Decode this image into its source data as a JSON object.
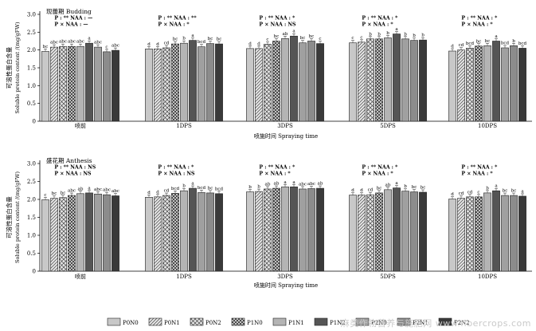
{
  "chart_data": [
    {
      "type": "bar",
      "title": "现蕾期 Budding",
      "ylabel_cn": "可溶性蛋白含量",
      "ylabel_en": "Soluble protein content /(mg/gFW)",
      "xlabel": "喷施时间 Spraying time",
      "ylim": [
        0,
        3.0
      ],
      "yticks": [
        "0",
        "0.5",
        "1.0",
        "1.5",
        "2.0",
        "2.5",
        "3.0"
      ],
      "categories": [
        "喷前",
        "1DPS",
        "3DPS",
        "5DPS",
        "10DPS"
      ],
      "stats": [
        [
          "P : ** NAA : —",
          "P × NAA : —"
        ],
        [
          "P : ** NAA : **",
          "P × NAA : *"
        ],
        [
          "P : ** NAA : *",
          "P × NAA : NS"
        ],
        [
          "P : ** NAA : *",
          "P × NAA : *"
        ],
        [
          "P : ** NAA : *",
          "P × NAA : *"
        ]
      ],
      "series": [
        {
          "name": "P0N0",
          "values": [
            1.96,
            2.03,
            2.04,
            2.2,
            1.97
          ],
          "letters": [
            "bc",
            "d",
            "d",
            "c",
            "d"
          ]
        },
        {
          "name": "P0N1",
          "values": [
            2.08,
            2.03,
            2.04,
            2.22,
            2.0
          ],
          "letters": [
            "abc",
            "d",
            "d",
            "c",
            "cd"
          ]
        },
        {
          "name": "P0N2",
          "values": [
            2.1,
            2.06,
            2.16,
            2.31,
            2.05
          ],
          "letters": [
            "abc",
            "cd",
            "c",
            "b",
            "bcd"
          ]
        },
        {
          "name": "P1N0",
          "values": [
            2.1,
            2.17,
            2.25,
            2.31,
            2.11
          ],
          "letters": [
            "abc",
            "bc",
            "bc",
            "b",
            "bc"
          ]
        },
        {
          "name": "P1N1",
          "values": [
            2.1,
            2.19,
            2.32,
            2.34,
            2.12
          ],
          "letters": [
            "abc",
            "b",
            "ab",
            "b",
            "bc"
          ]
        },
        {
          "name": "P1N2",
          "values": [
            2.19,
            2.27,
            2.39,
            2.45,
            2.25
          ],
          "letters": [
            "a",
            "a",
            "a",
            "a",
            "a"
          ]
        },
        {
          "name": "P2N0",
          "values": [
            2.08,
            2.09,
            2.2,
            2.31,
            2.06
          ],
          "letters": [
            "abc",
            "bcd",
            "bc",
            "b",
            "bcd"
          ]
        },
        {
          "name": "P2N1",
          "values": [
            1.95,
            2.18,
            2.25,
            2.27,
            2.12
          ],
          "letters": [
            "c",
            "bc",
            "bc",
            "b",
            "b"
          ]
        },
        {
          "name": "P2N2",
          "values": [
            1.99,
            2.17,
            2.18,
            2.28,
            2.05
          ],
          "letters": [
            "abc",
            "bc",
            "c",
            "b",
            "bcd"
          ]
        }
      ]
    },
    {
      "type": "bar",
      "title": "盛花期 Anthesis",
      "ylabel_cn": "可溶性蛋白含量",
      "ylabel_en": "Soluble protein content /(mg/gFW)",
      "xlabel": "喷施时间 Spraying time",
      "ylim": [
        0,
        3.0
      ],
      "yticks": [
        "0",
        "0.5",
        "1.0",
        "1.5",
        "2.0",
        "2.5",
        "3.0"
      ],
      "categories": [
        "喷前",
        "1DPS",
        "3DPS",
        "5DPS",
        "10DPS"
      ],
      "stats": [
        [
          "P : ** NAA : NS",
          "P × NAA : NS"
        ],
        [
          "P : ** NAA : *",
          "P × NAA : NS"
        ],
        [
          "P : ** NAA : *",
          "P × NAA : *"
        ],
        [
          "P : ** NAA : *",
          "P × NAA : *"
        ],
        [
          "P : ** NAA : *",
          "P × NAA : *"
        ]
      ],
      "series": [
        {
          "name": "P0N0",
          "values": [
            1.99,
            2.06,
            2.21,
            2.12,
            2.01
          ],
          "letters": [
            "c",
            "d",
            "b",
            "d",
            "d"
          ]
        },
        {
          "name": "P0N1",
          "values": [
            2.03,
            2.07,
            2.22,
            2.12,
            2.03
          ],
          "letters": [
            "bc",
            "d",
            "b",
            "d",
            "cd"
          ]
        },
        {
          "name": "P0N2",
          "values": [
            2.05,
            2.11,
            2.29,
            2.13,
            2.07
          ],
          "letters": [
            "bc",
            "cd",
            "ab",
            "cd",
            "cd"
          ]
        },
        {
          "name": "P1N0",
          "values": [
            2.11,
            2.17,
            2.31,
            2.18,
            2.07
          ],
          "letters": [
            "abc",
            "bcd",
            "ab",
            "bc",
            "c"
          ]
        },
        {
          "name": "P1N1",
          "values": [
            2.16,
            2.24,
            2.35,
            2.27,
            2.18
          ],
          "letters": [
            "ab",
            "b",
            "a",
            "ab",
            "b"
          ]
        },
        {
          "name": "P1N2",
          "values": [
            2.18,
            2.31,
            2.35,
            2.32,
            2.24
          ],
          "letters": [
            "a",
            "a",
            "a",
            "a",
            "a"
          ]
        },
        {
          "name": "P2N0",
          "values": [
            2.15,
            2.19,
            2.29,
            2.23,
            2.11
          ],
          "letters": [
            "abc",
            "bcd",
            "abc",
            "b",
            "bc"
          ]
        },
        {
          "name": "P2N1",
          "values": [
            2.13,
            2.18,
            2.3,
            2.21,
            2.11
          ],
          "letters": [
            "abc",
            "bc",
            "abc",
            "bc",
            "bc"
          ]
        },
        {
          "name": "P2N2",
          "values": [
            2.1,
            2.16,
            2.31,
            2.2,
            2.09
          ],
          "letters": [
            "abc",
            "bcd",
            "ab",
            "bc",
            "a"
          ]
        }
      ]
    }
  ],
  "legend": [
    "P0N0",
    "P0N1",
    "P0N2",
    "P1N0",
    "P1N1",
    "P1N2",
    "P2N0",
    "P2N1",
    "P2N2"
  ],
  "series_colors": [
    "#c8c8c8",
    "#e6e6e6",
    "#e6e6e6",
    "#e6e6e6",
    "#b4b4b4",
    "#555555",
    "#a0a0a0",
    "#8c8c8c",
    "#3a3a3a"
  ],
  "series_patterns": [
    "none",
    "diag",
    "cross",
    "xhatch",
    "none",
    "none",
    "none",
    "none",
    "none"
  ],
  "watermark": "麻类作物营养与施肥网 www.fibercrops.com"
}
